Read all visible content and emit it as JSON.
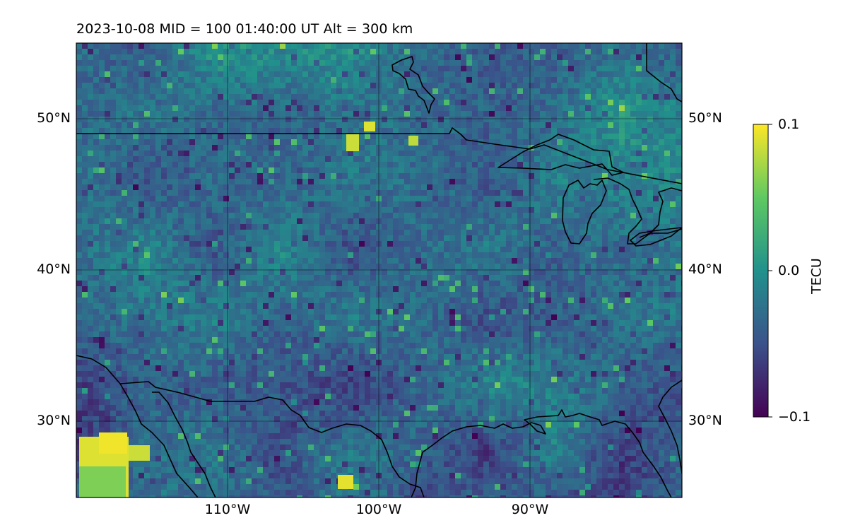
{
  "title": "2023-10-08  MID = 100    01:40:00  UT  Alt = 300 km",
  "map": {
    "lon_range": [
      -120,
      -80
    ],
    "lat_range": [
      25,
      55
    ],
    "lat_ticks": [
      {
        "value": 50,
        "label": "50°N"
      },
      {
        "value": 40,
        "label": "40°N"
      },
      {
        "value": 30,
        "label": "30°N"
      }
    ],
    "lon_ticks": [
      {
        "value": -110,
        "label": "110°W"
      },
      {
        "value": -100,
        "label": "100°W"
      },
      {
        "value": -90,
        "label": "90°W"
      }
    ],
    "gridlines": true,
    "colormap": "viridis",
    "field": "differential TEC"
  },
  "colorbar": {
    "label": "TECU",
    "min": -0.1,
    "max": 0.1,
    "ticks": [
      {
        "value": 0.1,
        "label": "0.1"
      },
      {
        "value": 0.0,
        "label": "0.0"
      },
      {
        "value": -0.1,
        "label": "−0.1"
      }
    ],
    "colors": [
      "#440154",
      "#3b528b",
      "#21918c",
      "#5ec962",
      "#fde725"
    ]
  }
}
